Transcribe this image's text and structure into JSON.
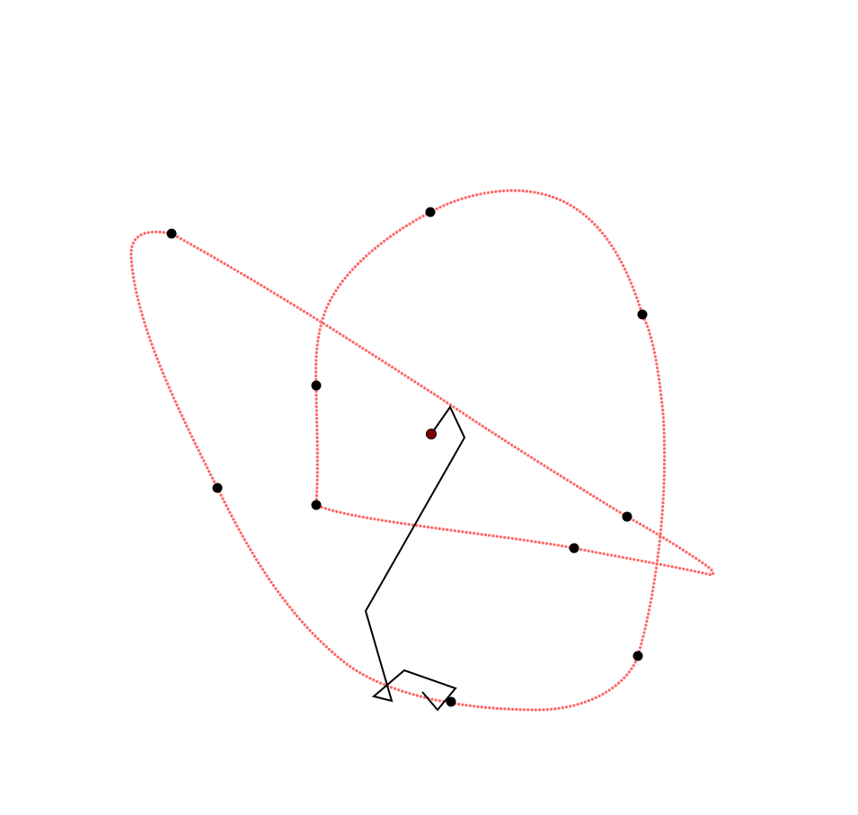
{
  "diagram": {
    "curve_color": "#ff6666",
    "node_color": "#000000",
    "center_color": "#800000",
    "link_color": "#000000"
  }
}
